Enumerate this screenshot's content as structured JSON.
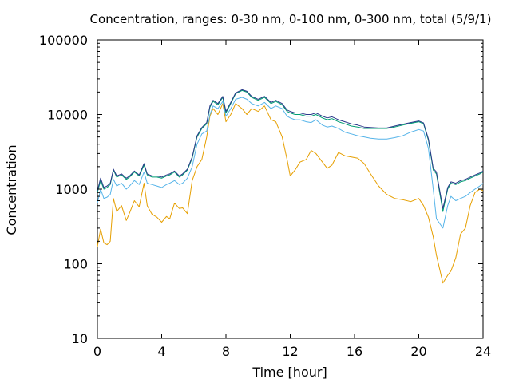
{
  "chart_data": {
    "type": "line",
    "title": "Concentration, ranges: 0-30 nm, 0-100 nm, 0-300 nm, total (5/9/1)",
    "xlabel": "Time [hour]",
    "ylabel": "Concentration",
    "xlim": [
      0,
      24
    ],
    "ylim": [
      10,
      100000
    ],
    "yscale": "log",
    "grid": false,
    "xticks": [
      0,
      4,
      8,
      12,
      16,
      20,
      24
    ],
    "xtick_labels": [
      "0",
      "4",
      "8",
      "12",
      "16",
      "20",
      "24"
    ],
    "yticks": [
      10,
      100,
      1000,
      10000,
      100000
    ],
    "ytick_labels": [
      "10",
      "100",
      "1000",
      "10000",
      "100000"
    ],
    "series": [
      {
        "color": "#e69f00",
        "x": [
          0,
          0.2,
          0.4,
          0.6,
          0.8,
          1.0,
          1.2,
          1.5,
          1.8,
          2.0,
          2.3,
          2.6,
          2.9,
          3.1,
          3.4,
          3.7,
          4.0,
          4.3,
          4.5,
          4.8,
          5.1,
          5.3,
          5.6,
          5.9,
          6.2,
          6.5,
          6.8,
          7.0,
          7.2,
          7.5,
          7.8,
          8.0,
          8.3,
          8.6,
          9.0,
          9.3,
          9.6,
          10.0,
          10.4,
          10.8,
          11.1,
          11.5,
          11.8,
          12.0,
          12.3,
          12.6,
          13.0,
          13.3,
          13.6,
          14.0,
          14.3,
          14.6,
          15.0,
          15.4,
          15.8,
          16.2,
          16.6,
          17.0,
          17.5,
          18.0,
          18.5,
          19.0,
          19.5,
          20.0,
          20.3,
          20.6,
          20.9,
          21.1,
          21.5,
          21.8,
          22.0,
          22.3,
          22.6,
          22.9,
          23.2,
          23.5,
          23.8,
          24.0
        ],
        "values": [
          170,
          290,
          190,
          180,
          200,
          750,
          500,
          600,
          380,
          480,
          700,
          580,
          1200,
          600,
          460,
          420,
          360,
          430,
          400,
          650,
          550,
          560,
          470,
          1300,
          2000,
          2500,
          5000,
          9500,
          12000,
          10000,
          14000,
          8000,
          10000,
          14000,
          12000,
          10000,
          12000,
          11000,
          13000,
          8500,
          8000,
          5000,
          2500,
          1500,
          1800,
          2300,
          2500,
          3300,
          3000,
          2300,
          1900,
          2100,
          3100,
          2800,
          2700,
          2600,
          2200,
          1600,
          1100,
          850,
          750,
          720,
          680,
          750,
          600,
          420,
          230,
          130,
          55,
          70,
          80,
          120,
          250,
          300,
          600,
          900,
          1000,
          950
        ]
      },
      {
        "color": "#56b4e9",
        "x": [
          0,
          0.2,
          0.4,
          0.6,
          0.8,
          1.0,
          1.2,
          1.5,
          1.8,
          2.0,
          2.3,
          2.6,
          2.9,
          3.1,
          3.4,
          3.7,
          4.0,
          4.3,
          4.5,
          4.8,
          5.1,
          5.3,
          5.6,
          5.9,
          6.2,
          6.5,
          6.8,
          7.0,
          7.2,
          7.5,
          7.8,
          8.0,
          8.3,
          8.6,
          9.0,
          9.3,
          9.6,
          10.0,
          10.4,
          10.8,
          11.1,
          11.5,
          11.8,
          12.0,
          12.3,
          12.6,
          13.0,
          13.3,
          13.6,
          14.0,
          14.3,
          14.6,
          15.0,
          15.4,
          15.8,
          16.2,
          16.6,
          17.0,
          17.5,
          18.0,
          18.5,
          19.0,
          19.5,
          20.0,
          20.3,
          20.6,
          20.9,
          21.1,
          21.5,
          21.8,
          22.0,
          22.3,
          22.6,
          22.9,
          23.2,
          23.5,
          23.8,
          24.0
        ],
        "values": [
          650,
          1000,
          750,
          780,
          850,
          1350,
          1100,
          1200,
          1000,
          1100,
          1300,
          1150,
          1700,
          1200,
          1150,
          1100,
          1050,
          1150,
          1200,
          1300,
          1150,
          1200,
          1400,
          2000,
          4000,
          5500,
          6000,
          10000,
          13000,
          12000,
          15000,
          9500,
          12000,
          16000,
          17000,
          16000,
          14000,
          13000,
          14500,
          12000,
          13000,
          12000,
          9500,
          9000,
          8500,
          8500,
          8000,
          7800,
          8500,
          7200,
          6800,
          7000,
          6500,
          5800,
          5500,
          5200,
          5000,
          4800,
          4700,
          4700,
          4900,
          5200,
          5800,
          6300,
          6000,
          3500,
          1000,
          400,
          300,
          600,
          800,
          700,
          750,
          800,
          900,
          1000,
          1100,
          1200
        ]
      },
      {
        "color": "#009e73",
        "x": [
          0,
          0.2,
          0.4,
          0.6,
          0.8,
          1.0,
          1.2,
          1.5,
          1.8,
          2.0,
          2.3,
          2.6,
          2.9,
          3.1,
          3.4,
          3.7,
          4.0,
          4.3,
          4.5,
          4.8,
          5.1,
          5.3,
          5.6,
          5.9,
          6.2,
          6.5,
          6.8,
          7.0,
          7.2,
          7.5,
          7.8,
          8.0,
          8.3,
          8.6,
          9.0,
          9.3,
          9.6,
          10.0,
          10.4,
          10.8,
          11.1,
          11.5,
          11.8,
          12.0,
          12.3,
          12.6,
          13.0,
          13.3,
          13.6,
          14.0,
          14.3,
          14.6,
          15.0,
          15.4,
          15.8,
          16.2,
          16.6,
          17.0,
          17.5,
          18.0,
          18.5,
          19.0,
          19.5,
          20.0,
          20.3,
          20.6,
          20.9,
          21.1,
          21.5,
          21.8,
          22.0,
          22.3,
          22.6,
          22.9,
          23.2,
          23.5,
          23.8,
          24.0
        ],
        "values": [
          900,
          1300,
          1000,
          1050,
          1150,
          1800,
          1450,
          1550,
          1350,
          1450,
          1700,
          1500,
          2100,
          1550,
          1450,
          1450,
          1400,
          1500,
          1550,
          1700,
          1450,
          1550,
          1800,
          2600,
          5000,
          6500,
          7500,
          12500,
          15000,
          13500,
          17000,
          10500,
          14000,
          19000,
          21000,
          20000,
          17000,
          15500,
          17000,
          14000,
          15000,
          13500,
          11000,
          10500,
          10000,
          10000,
          9500,
          9500,
          10000,
          9000,
          8500,
          8800,
          8000,
          7500,
          7000,
          6800,
          6500,
          6500,
          6500,
          6500,
          6800,
          7200,
          7600,
          8000,
          7500,
          4500,
          1800,
          1600,
          500,
          1000,
          1200,
          1150,
          1250,
          1300,
          1400,
          1500,
          1600,
          1700
        ]
      },
      {
        "color": "#2a3a8a",
        "x": [
          0,
          0.2,
          0.4,
          0.6,
          0.8,
          1.0,
          1.2,
          1.5,
          1.8,
          2.0,
          2.3,
          2.6,
          2.9,
          3.1,
          3.4,
          3.7,
          4.0,
          4.3,
          4.5,
          4.8,
          5.1,
          5.3,
          5.6,
          5.9,
          6.2,
          6.5,
          6.8,
          7.0,
          7.2,
          7.5,
          7.8,
          8.0,
          8.3,
          8.6,
          9.0,
          9.3,
          9.6,
          10.0,
          10.4,
          10.8,
          11.1,
          11.5,
          11.8,
          12.0,
          12.3,
          12.6,
          13.0,
          13.3,
          13.6,
          14.0,
          14.3,
          14.6,
          15.0,
          15.4,
          15.8,
          16.2,
          16.6,
          17.0,
          17.5,
          18.0,
          18.5,
          19.0,
          19.5,
          20.0,
          20.3,
          20.6,
          20.9,
          21.1,
          21.5,
          21.8,
          22.0,
          22.3,
          22.6,
          22.9,
          23.2,
          23.5,
          23.8,
          24.0
        ],
        "values": [
          950,
          1400,
          1050,
          1100,
          1200,
          1850,
          1500,
          1600,
          1400,
          1500,
          1750,
          1550,
          2200,
          1600,
          1500,
          1500,
          1450,
          1550,
          1600,
          1750,
          1500,
          1600,
          1850,
          2700,
          5200,
          6700,
          7800,
          13000,
          15500,
          14000,
          17500,
          11000,
          14500,
          19500,
          21500,
          20500,
          17500,
          16000,
          17500,
          14500,
          15500,
          14000,
          11500,
          11000,
          10500,
          10500,
          10000,
          10000,
          10500,
          9500,
          9000,
          9300,
          8500,
          8000,
          7500,
          7200,
          6800,
          6700,
          6600,
          6600,
          7000,
          7400,
          7800,
          8200,
          7700,
          4700,
          1900,
          1700,
          550,
          1050,
          1250,
          1200,
          1300,
          1350,
          1450,
          1550,
          1650,
          1750
        ]
      }
    ]
  }
}
